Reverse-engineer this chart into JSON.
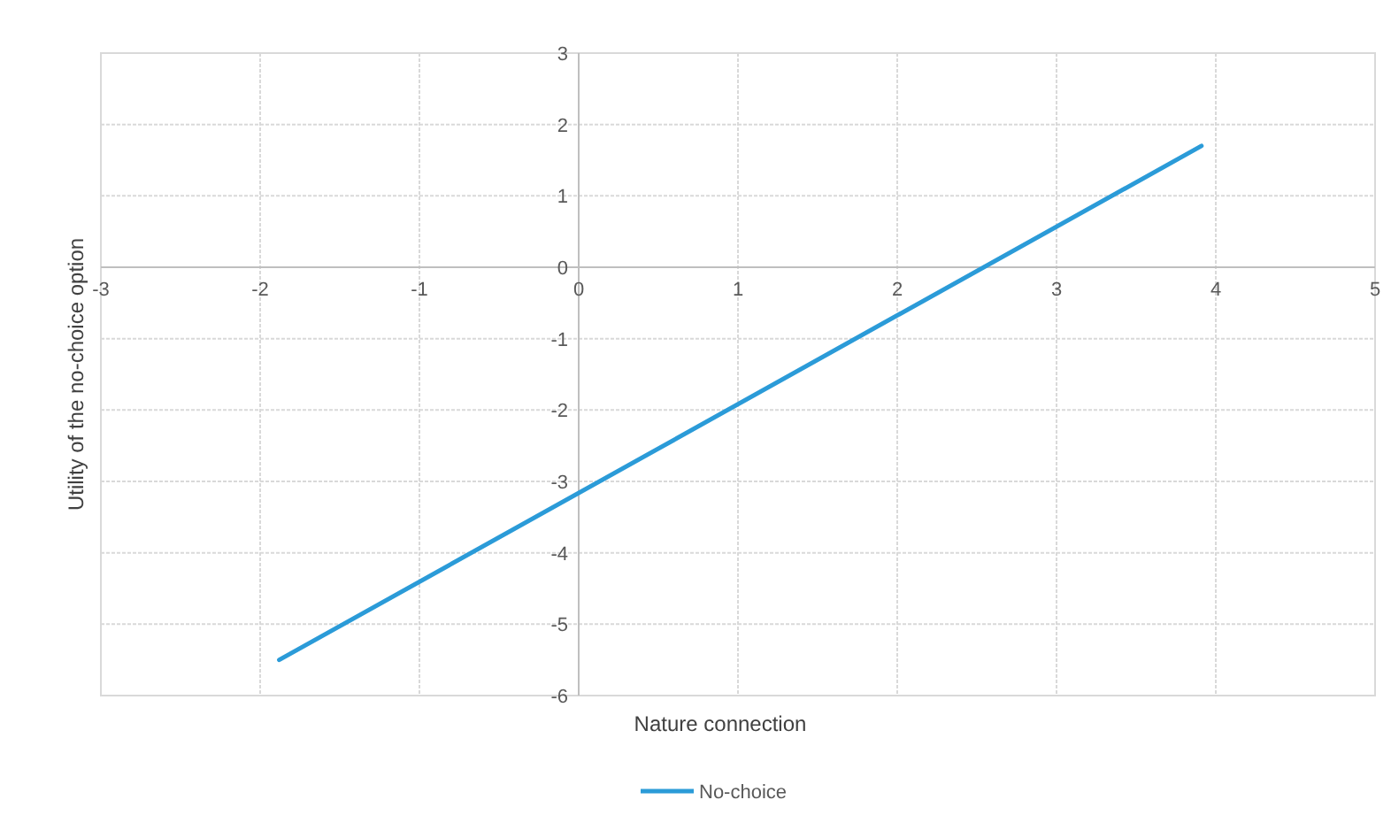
{
  "chart_data": {
    "type": "line",
    "xlabel": "Nature connection",
    "ylabel": "Utility of the no-choice option",
    "x": [
      -1.88,
      3.91
    ],
    "series": [
      {
        "name": "No-choice",
        "color": "#2b9bd8",
        "values": [
          -5.5,
          1.7
        ]
      }
    ],
    "xlim": [
      -3,
      5
    ],
    "xticks": [
      -3,
      -2,
      -1,
      0,
      1,
      2,
      3,
      4,
      5
    ],
    "ylim": [
      -6,
      3
    ],
    "yticks": [
      -6,
      -5,
      -4,
      -3,
      -2,
      -1,
      0,
      1,
      2,
      3
    ],
    "grid": true,
    "legend": "bottom",
    "marker": "none",
    "line_style": "solid"
  }
}
